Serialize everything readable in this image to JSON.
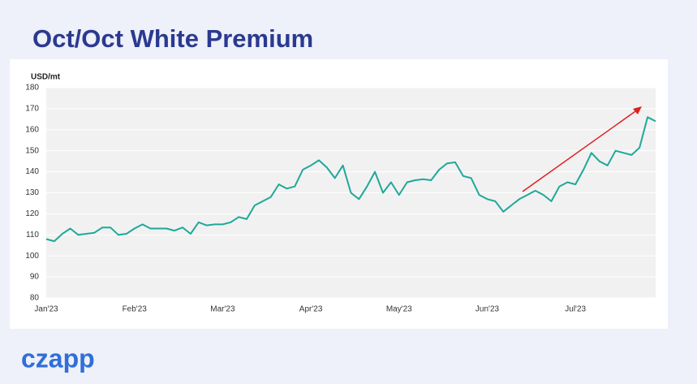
{
  "chart_data": {
    "type": "line",
    "title": "Oct/Oct White Premium",
    "y_label": "USD/mt",
    "brand": "czapp",
    "categories": [
      "Jan'23",
      null,
      null,
      null,
      null,
      null,
      null,
      null,
      null,
      null,
      null,
      "Feb'23",
      null,
      null,
      null,
      null,
      null,
      null,
      null,
      null,
      null,
      null,
      "Mar'23",
      null,
      null,
      null,
      null,
      null,
      null,
      null,
      null,
      null,
      null,
      "Apr'23",
      null,
      null,
      null,
      null,
      null,
      null,
      null,
      null,
      null,
      null,
      "May'23",
      null,
      null,
      null,
      null,
      null,
      null,
      null,
      null,
      null,
      null,
      "Jun'23",
      null,
      null,
      null,
      null,
      null,
      null,
      null,
      null,
      null,
      null,
      "Jul'23",
      null,
      null,
      null,
      null,
      null,
      null,
      null,
      null,
      null,
      null
    ],
    "series": [
      {
        "name": "Oct/Oct White Premium",
        "color": "#1fa89a",
        "values": [
          108,
          107,
          110.5,
          113,
          110,
          110.5,
          111,
          113.5,
          113.5,
          110,
          110.5,
          113,
          115,
          113,
          113,
          113,
          112,
          113.5,
          110.5,
          116,
          114.5,
          115,
          115,
          116,
          118.5,
          117.5,
          124,
          126,
          128,
          134,
          132,
          133,
          141,
          143,
          145.5,
          142,
          137,
          143,
          130,
          127,
          133,
          140,
          130,
          135,
          129,
          135,
          136,
          136.5,
          136,
          141,
          144,
          144.5,
          138,
          137,
          129,
          127,
          126,
          121,
          124,
          127,
          129,
          131,
          129,
          126,
          133,
          135,
          134,
          141,
          149,
          145,
          143,
          150,
          149,
          148,
          151.5,
          166,
          164
        ]
      }
    ],
    "ylim": [
      80,
      180
    ],
    "yticks": [
      80,
      90,
      100,
      110,
      120,
      130,
      140,
      150,
      160,
      170,
      180
    ],
    "grid": true
  }
}
